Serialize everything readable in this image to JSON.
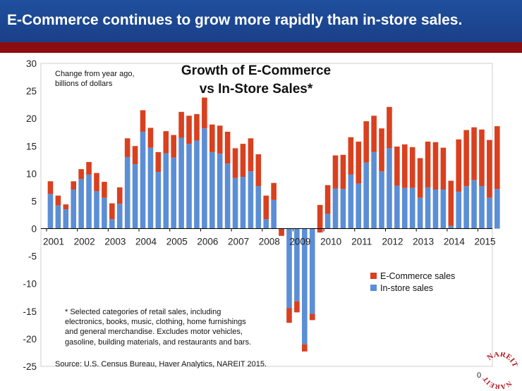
{
  "header": {
    "title": "E-Commerce continues to grow more rapidly than in-store sales."
  },
  "page_number": "0",
  "logo_text": "NAREIT",
  "colors": {
    "banner": "#1f4f9c",
    "accent_bar": "#8c0d10",
    "ecommerce": "#d9401f",
    "instore": "#5b8ed5"
  },
  "chart_data": {
    "type": "bar",
    "stacked": true,
    "title": [
      "Growth of E-Commerce",
      "vs In-Store Sales*"
    ],
    "units_note": [
      "Change from year ago,",
      "billions of dollars"
    ],
    "footnote": [
      "* Selected categories of retail sales, including",
      "electronics, books, music, clothing, home furnishings",
      "and general merchandise.  Excludes motor vehicles,",
      "gasoline, building materials, and restaurants and bars."
    ],
    "source": "Source: U.S. Census Bureau, Haver Analytics, NAREIT 2015.",
    "ylim": [
      -25,
      30
    ],
    "yticks": [
      "30",
      "25",
      "20",
      "15",
      "10",
      "5",
      "0",
      "-5",
      "-10",
      "-15",
      "-20",
      "-25"
    ],
    "year_labels": [
      "2001",
      "2002",
      "2003",
      "2004",
      "2005",
      "2006",
      "2007",
      "2008",
      "2009",
      "2010",
      "2011",
      "2012",
      "2013",
      "2014",
      "2015"
    ],
    "legend_position": "right",
    "grid": false,
    "series": [
      {
        "name": "In-store sales",
        "values": [
          6.3,
          4.2,
          3.5,
          7.1,
          9.0,
          9.8,
          6.8,
          5.6,
          1.7,
          4.5,
          13.0,
          11.7,
          17.6,
          14.7,
          10.3,
          13.7,
          12.9,
          16.5,
          15.4,
          16.0,
          18.2,
          13.9,
          13.6,
          11.8,
          9.2,
          9.4,
          10.4,
          7.7,
          1.7,
          5.2,
          -1.3,
          -14.4,
          -13.2,
          -21.0,
          -16.6,
          -0.7,
          2.7,
          7.3,
          7.2,
          9.8,
          8.2,
          12.0,
          13.9,
          10.4,
          14.6,
          7.8,
          7.4,
          7.4,
          5.6,
          7.5,
          7.1,
          7.1,
          0.5,
          6.7,
          7.7,
          8.8,
          7.7,
          5.6,
          7.2
        ]
      },
      {
        "name": "E-Commerce sales",
        "values": [
          2.3,
          1.8,
          0.9,
          1.5,
          1.8,
          2.3,
          3.3,
          2.9,
          2.9,
          3.0,
          3.4,
          3.3,
          3.9,
          3.6,
          3.6,
          4.0,
          4.1,
          4.7,
          5.1,
          4.8,
          5.6,
          5.0,
          5.1,
          5.8,
          5.4,
          6.0,
          6.0,
          5.8,
          4.3,
          3.1,
          1.3,
          -2.7,
          -2.0,
          -1.3,
          1.1,
          5.0,
          5.2,
          6.0,
          6.2,
          6.8,
          7.6,
          7.5,
          6.6,
          7.8,
          7.5,
          7.1,
          7.9,
          7.4,
          7.2,
          8.3,
          8.6,
          7.6,
          8.2,
          9.5,
          10.2,
          9.6,
          10.3,
          10.5,
          11.4
        ]
      }
    ]
  }
}
